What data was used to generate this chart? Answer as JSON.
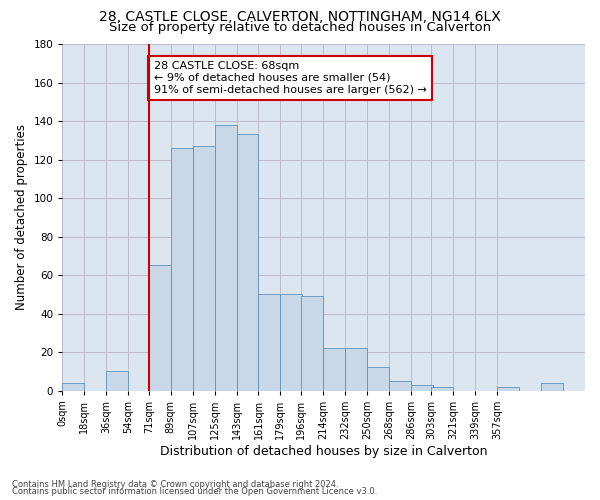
{
  "title1": "28, CASTLE CLOSE, CALVERTON, NOTTINGHAM, NG14 6LX",
  "title2": "Size of property relative to detached houses in Calverton",
  "xlabel": "Distribution of detached houses by size in Calverton",
  "ylabel": "Number of detached properties",
  "footnote1": "Contains HM Land Registry data © Crown copyright and database right 2024.",
  "footnote2": "Contains public sector information licensed under the Open Government Licence v3.0.",
  "bar_heights": [
    4,
    0,
    10,
    0,
    65,
    126,
    127,
    138,
    133,
    50,
    50,
    49,
    22,
    22,
    12,
    5,
    3,
    2,
    0,
    0,
    2,
    0,
    4,
    0
  ],
  "bin_starts": [
    0,
    18,
    36,
    54,
    71,
    89,
    107,
    125,
    143,
    161,
    179,
    196,
    214,
    232,
    250,
    268,
    286,
    303,
    321,
    339,
    357,
    375,
    393,
    411
  ],
  "bin_width": 18,
  "xtick_labels": [
    "0sqm",
    "18sqm",
    "36sqm",
    "54sqm",
    "71sqm",
    "89sqm",
    "107sqm",
    "125sqm",
    "143sqm",
    "161sqm",
    "179sqm",
    "196sqm",
    "214sqm",
    "232sqm",
    "250sqm",
    "268sqm",
    "286sqm",
    "303sqm",
    "321sqm",
    "339sqm",
    "357sqm"
  ],
  "bar_color": "#c8d8e8",
  "bar_edge_color": "#6090b8",
  "property_line_x": 71,
  "property_line_color": "#cc0000",
  "annotation_text": "28 CASTLE CLOSE: 68sqm\n← 9% of detached houses are smaller (54)\n91% of semi-detached houses are larger (562) →",
  "annotation_box_facecolor": "#ffffff",
  "annotation_box_edgecolor": "#cc0000",
  "ylim": [
    0,
    180
  ],
  "yticks": [
    0,
    20,
    40,
    60,
    80,
    100,
    120,
    140,
    160,
    180
  ],
  "grid_color": "#bbbbcc",
  "bg_color": "#dce6f0",
  "title1_fontsize": 10,
  "title2_fontsize": 9.5,
  "xlabel_fontsize": 9,
  "ylabel_fontsize": 8.5,
  "tick_fontsize": 7,
  "annotation_fontsize": 8,
  "footnote_fontsize": 6
}
